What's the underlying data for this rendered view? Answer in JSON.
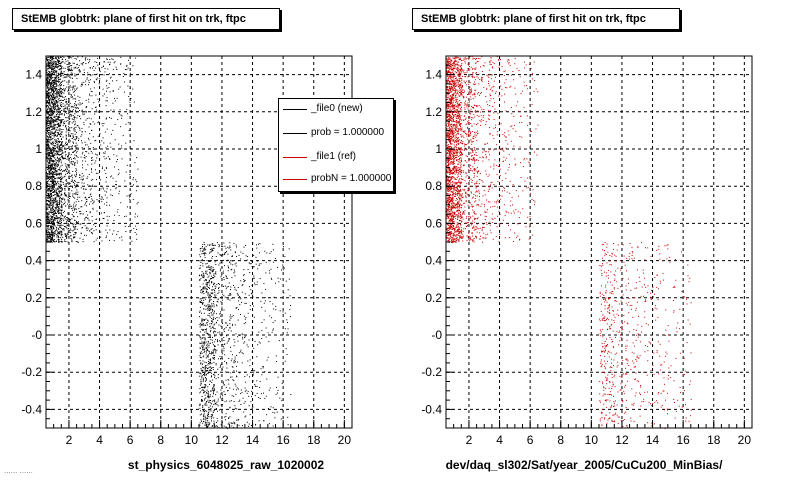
{
  "colors": {
    "file0": "#000000",
    "file1": "#cc0000"
  },
  "legend": {
    "entries": [
      {
        "label": "_file0 (new)",
        "color": "#000000"
      },
      {
        "label": "prob = 1.000000",
        "color": "#000000"
      },
      {
        "label": "_file1 (ref)",
        "color": "#cc0000"
      },
      {
        "label": "probN = 1.000000",
        "color": "#cc0000"
      }
    ]
  },
  "corner_note": "...... ......",
  "chart_data": [
    {
      "type": "scatter",
      "title": "StEMB globtrk: plane of first hit on trk, ftpc",
      "xlabel": "st_physics_6048025_raw_1020002",
      "ylabel": "",
      "xlim": [
        0.5,
        20.5
      ],
      "ylim": [
        -0.5,
        1.5
      ],
      "grid": true,
      "xticks": [
        2,
        4,
        6,
        8,
        10,
        12,
        14,
        16,
        18,
        20
      ],
      "xtick_labels": [
        "2",
        "4",
        "6",
        "8",
        "10",
        "12",
        "14",
        "16",
        "18",
        "20"
      ],
      "yticks": [
        -0.4,
        -0.2,
        0,
        0.2,
        0.4,
        0.6,
        0.8,
        1,
        1.2,
        1.4
      ],
      "ytick_labels": [
        "-0.4",
        "-0.2",
        "-0",
        "0.2",
        "0.4",
        "0.6",
        "0.8",
        "1",
        "1.2",
        "1.4"
      ],
      "series": [
        {
          "color": "#000000",
          "clusters": [
            {
              "x": [
                0.5,
                1.0
              ],
              "y": [
                0.5,
                1.5
              ],
              "density": 1200
            },
            {
              "x": [
                1.0,
                1.5
              ],
              "y": [
                0.5,
                1.5
              ],
              "density": 800
            },
            {
              "x": [
                1.5,
                2.5
              ],
              "y": [
                0.5,
                1.5
              ],
              "density": 600
            },
            {
              "x": [
                2.5,
                3.5
              ],
              "y": [
                0.5,
                1.5
              ],
              "density": 260
            },
            {
              "x": [
                3.5,
                4.5
              ],
              "y": [
                0.5,
                1.5
              ],
              "density": 160
            },
            {
              "x": [
                4.5,
                5.5
              ],
              "y": [
                0.5,
                1.5
              ],
              "density": 100
            },
            {
              "x": [
                5.5,
                6.5
              ],
              "y": [
                0.5,
                1.5
              ],
              "density": 70
            },
            {
              "x": [
                10.5,
                11.5
              ],
              "y": [
                -0.5,
                0.5
              ],
              "density": 700
            },
            {
              "x": [
                11.5,
                12.5
              ],
              "y": [
                -0.5,
                0.5
              ],
              "density": 260
            },
            {
              "x": [
                12.5,
                13.5
              ],
              "y": [
                -0.5,
                0.5
              ],
              "density": 170
            },
            {
              "x": [
                13.5,
                14.5
              ],
              "y": [
                -0.5,
                0.5
              ],
              "density": 110
            },
            {
              "x": [
                14.5,
                15.5
              ],
              "y": [
                -0.5,
                0.5
              ],
              "density": 75
            },
            {
              "x": [
                15.5,
                16.5
              ],
              "y": [
                -0.5,
                0.5
              ],
              "density": 50
            }
          ]
        }
      ]
    },
    {
      "type": "scatter",
      "title": "StEMB globtrk: plane of first hit on trk, ftpc",
      "xlabel": "dev/daq_sl302/Sat/year_2005/CuCu200_MinBias/",
      "ylabel": "",
      "xlim": [
        0.5,
        20.5
      ],
      "ylim": [
        -0.5,
        1.5
      ],
      "grid": true,
      "xticks": [
        2,
        4,
        6,
        8,
        10,
        12,
        14,
        16,
        18,
        20
      ],
      "xtick_labels": [
        "2",
        "4",
        "6",
        "8",
        "10",
        "12",
        "14",
        "16",
        "18",
        "20"
      ],
      "yticks": [
        -0.4,
        -0.2,
        0,
        0.2,
        0.4,
        0.6,
        0.8,
        1,
        1.2,
        1.4
      ],
      "ytick_labels": [
        "-0.4",
        "-0.2",
        "-0",
        "0.2",
        "0.4",
        "0.6",
        "0.8",
        "1",
        "1.2",
        "1.4"
      ],
      "series": [
        {
          "color": "#cc0000",
          "clusters": [
            {
              "x": [
                0.5,
                1.0
              ],
              "y": [
                0.5,
                1.5
              ],
              "density": 1100
            },
            {
              "x": [
                1.0,
                1.5
              ],
              "y": [
                0.5,
                1.5
              ],
              "density": 700
            },
            {
              "x": [
                1.5,
                2.5
              ],
              "y": [
                0.5,
                1.5
              ],
              "density": 450
            },
            {
              "x": [
                2.5,
                3.5
              ],
              "y": [
                0.5,
                1.5
              ],
              "density": 200
            },
            {
              "x": [
                3.5,
                4.5
              ],
              "y": [
                0.5,
                1.5
              ],
              "density": 120
            },
            {
              "x": [
                4.5,
                5.5
              ],
              "y": [
                0.5,
                1.5
              ],
              "density": 80
            },
            {
              "x": [
                5.5,
                6.5
              ],
              "y": [
                0.5,
                1.5
              ],
              "density": 55
            },
            {
              "x": [
                10.5,
                11.5
              ],
              "y": [
                -0.5,
                0.5
              ],
              "density": 260
            },
            {
              "x": [
                11.5,
                12.5
              ],
              "y": [
                -0.5,
                0.5
              ],
              "density": 120
            },
            {
              "x": [
                12.5,
                13.5
              ],
              "y": [
                -0.5,
                0.5
              ],
              "density": 90
            },
            {
              "x": [
                13.5,
                14.5
              ],
              "y": [
                -0.5,
                0.5
              ],
              "density": 70
            },
            {
              "x": [
                14.5,
                15.5
              ],
              "y": [
                -0.5,
                0.5
              ],
              "density": 55
            },
            {
              "x": [
                15.5,
                16.5
              ],
              "y": [
                -0.5,
                0.5
              ],
              "density": 40
            }
          ]
        }
      ]
    }
  ]
}
